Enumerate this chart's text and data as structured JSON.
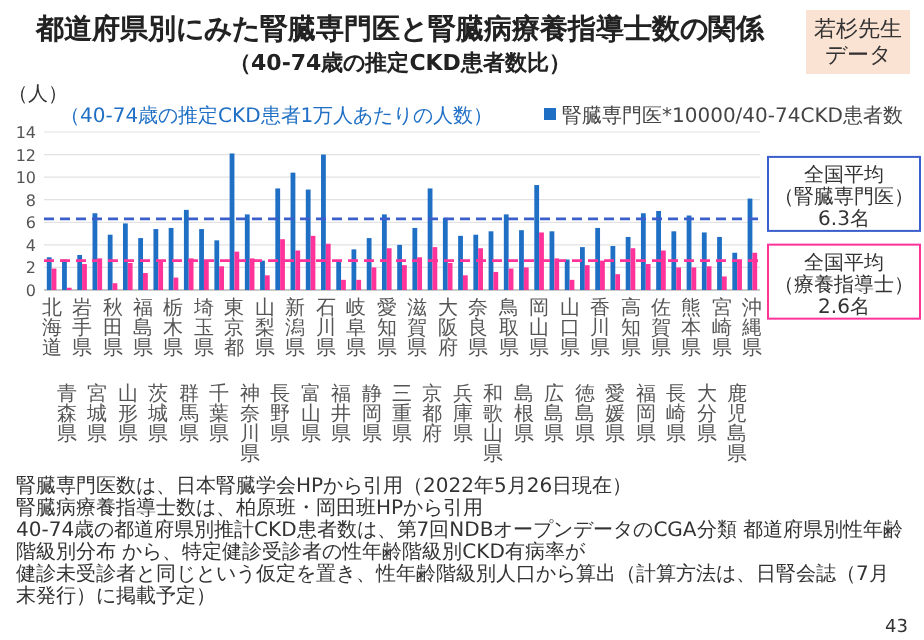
{
  "chart_data": {
    "type": "bar",
    "title": "都道府県別にみた腎臓専門医と腎臓病療養指導士数の関係",
    "subtitle": "（40-74歳の推定CKD患者数比）",
    "ylabel": "（人）",
    "categories": [
      "北海道",
      "青森県",
      "岩手県",
      "宮城県",
      "秋田県",
      "山形県",
      "福島県",
      "茨城県",
      "栃木県",
      "群馬県",
      "埼玉県",
      "千葉県",
      "東京都",
      "神奈川県",
      "山梨県",
      "長野県",
      "新潟県",
      "富山県",
      "石川県",
      "福井県",
      "岐阜県",
      "静岡県",
      "愛知県",
      "三重県",
      "滋賀県",
      "京都府",
      "大阪府",
      "兵庫県",
      "奈良県",
      "和歌山県",
      "鳥取県",
      "島根県",
      "岡山県",
      "広島県",
      "山口県",
      "徳島県",
      "香川県",
      "愛媛県",
      "高知県",
      "福岡県",
      "佐賀県",
      "長崎県",
      "熊本県",
      "大分県",
      "宮崎県",
      "鹿児島県",
      "沖縄県"
    ],
    "series": [
      {
        "name": "腎臓専門医*10000/40-74CKD患者数",
        "color": "#1f6fc5",
        "values": [
          2.9,
          2.7,
          3.1,
          6.8,
          4.9,
          5.9,
          4.6,
          5.4,
          5.5,
          7.1,
          5.4,
          4.4,
          12.1,
          6.7,
          2.6,
          9.0,
          10.4,
          8.9,
          12.0,
          2.6,
          3.6,
          4.6,
          6.7,
          4.0,
          5.5,
          9.0,
          6.4,
          4.8,
          4.9,
          5.2,
          6.7,
          5.3,
          9.3,
          5.2,
          2.7,
          3.8,
          5.5,
          3.9,
          4.7,
          6.8,
          7.0,
          5.2,
          6.6,
          5.1,
          4.7,
          3.3,
          8.1
        ]
      },
      {
        "color": "#ff3399",
        "values": [
          1.9,
          0.2,
          2.3,
          2.8,
          0.6,
          2.4,
          1.5,
          2.6,
          1.1,
          2.8,
          2.6,
          2.1,
          3.4,
          2.8,
          1.3,
          4.5,
          3.5,
          4.8,
          4.1,
          0.9,
          0.9,
          2.0,
          3.7,
          2.2,
          2.9,
          3.8,
          2.4,
          1.3,
          3.7,
          1.6,
          1.9,
          2.0,
          5.1,
          2.8,
          0.9,
          2.2,
          2.6,
          1.4,
          3.7,
          2.3,
          3.5,
          2.0,
          2.0,
          2.1,
          1.2,
          2.6,
          3.3
        ]
      }
    ],
    "ylim": [
      0,
      14
    ],
    "yticks": [
      0,
      2,
      4,
      6,
      8,
      10,
      12,
      14
    ],
    "grid": "y",
    "legend": "top right",
    "ref_lines": [
      {
        "axis": "y",
        "value": 6.3,
        "label": "全国平均（腎臓専門医）6.3名",
        "color": "#3a5fcd",
        "line_style": "dashed"
      },
      {
        "axis": "y",
        "value": 2.6,
        "label": "全国平均（療養指導士）2.6名",
        "color": "#ff3399",
        "line_style": "dashed"
      }
    ],
    "annotations": [
      "（40-74歳の推定CKD患者1万人あたりの人数）",
      "若杉先生データ",
      "腎臓専門医数は、日本腎臓学会HPから引用（2022年5月26日現在）",
      "腎臓病療養指導士数は、柏原班・岡田班HPから引用",
      "40-74歳の都道府県別推計CKD患者数は、第7回NDBオープンデータのCGA分類 都道府県別性年齢階級別分布 から、特定健診受診者の性年齢階級別CKD有病率が",
      "健診未受診者と同じという仮定を置き、性年齢階級別人口から算出（計算方法は、日腎会誌（7月末発行）に掲載予定）",
      "43"
    ]
  }
}
